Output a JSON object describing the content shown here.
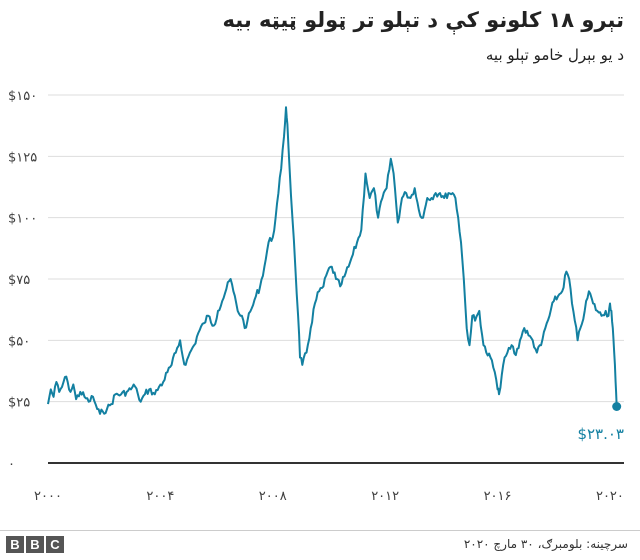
{
  "header": {
    "title": "تېرو ۱۸ کلونو کې د تېلو تر ټولو ټيټه بيه",
    "subtitle": "د يو بېرل خامو تېلو بيه"
  },
  "footer": {
    "logo_text": "BBC",
    "source": "سرچينه: بلومبرګ، ۳۰ مارچ ۲۰۲۰"
  },
  "chart_data": {
    "type": "line",
    "title": "تېرو ۱۸ کلونو کې د تېلو تر ټولو ټيټه بيه",
    "subtitle": "د يو بېرل خامو تېلو بيه",
    "xlabel": "",
    "ylabel": "",
    "xlim": [
      2000,
      2020.5
    ],
    "ylim": [
      0,
      150
    ],
    "grid": true,
    "line_color": "#1380A1",
    "x_ticks": [
      {
        "value": 2000,
        "label": "۲۰۰۰"
      },
      {
        "value": 2004,
        "label": "۲۰۰۴"
      },
      {
        "value": 2008,
        "label": "۲۰۰۸"
      },
      {
        "value": 2012,
        "label": "۲۰۱۲"
      },
      {
        "value": 2016,
        "label": "۲۰۱۶"
      },
      {
        "value": 2020,
        "label": "۲۰۲۰"
      }
    ],
    "y_ticks": [
      {
        "value": 0,
        "label": "۰"
      },
      {
        "value": 25,
        "label": "$۲۵"
      },
      {
        "value": 50,
        "label": "$۵۰"
      },
      {
        "value": 75,
        "label": "$۷۵"
      },
      {
        "value": 100,
        "label": "$۱۰۰"
      },
      {
        "value": 125,
        "label": "$۱۲۵"
      },
      {
        "value": 150,
        "label": "$۱۵۰"
      }
    ],
    "annotation": {
      "x": 2020.24,
      "y": 23.03,
      "label": "$۲۳.۰۳"
    },
    "series": [
      {
        "x": [
          2000.0,
          2000.1,
          2000.2,
          2000.3,
          2000.4,
          2000.5,
          2000.6,
          2000.7,
          2000.8,
          2000.9,
          2001.0,
          2001.15,
          2001.3,
          2001.45,
          2001.6,
          2001.75,
          2001.85,
          2001.95,
          2002.1,
          2002.25,
          2002.4,
          2002.6,
          2002.8,
          2002.95,
          2003.05,
          2003.2,
          2003.3,
          2003.45,
          2003.6,
          2003.8,
          2003.95,
          2004.1,
          2004.25,
          2004.4,
          2004.55,
          2004.7,
          2004.8,
          2004.9,
          2005.05,
          2005.2,
          2005.35,
          2005.55,
          2005.7,
          2005.9,
          2006.05,
          2006.2,
          2006.35,
          2006.5,
          2006.6,
          2006.75,
          2006.9,
          2007.0,
          2007.1,
          2007.25,
          2007.4,
          2007.55,
          2007.7,
          2007.85,
          2008.0,
          2008.1,
          2008.2,
          2008.3,
          2008.4,
          2008.47,
          2008.52,
          2008.6,
          2008.7,
          2008.8,
          2008.9,
          2008.97,
          2009.05,
          2009.2,
          2009.35,
          2009.5,
          2009.65,
          2009.8,
          2009.95,
          2010.1,
          2010.25,
          2010.4,
          2010.55,
          2010.7,
          2010.85,
          2011.0,
          2011.15,
          2011.3,
          2011.45,
          2011.6,
          2011.75,
          2011.9,
          2012.05,
          2012.2,
          2012.3,
          2012.45,
          2012.6,
          2012.75,
          2012.9,
          2013.05,
          2013.2,
          2013.35,
          2013.5,
          2013.65,
          2013.8,
          2013.95,
          2014.1,
          2014.25,
          2014.4,
          2014.5,
          2014.6,
          2014.7,
          2014.8,
          2014.9,
          2015.0,
          2015.1,
          2015.2,
          2015.35,
          2015.5,
          2015.6,
          2015.75,
          2015.9,
          2016.0,
          2016.05,
          2016.2,
          2016.35,
          2016.5,
          2016.65,
          2016.8,
          2016.95,
          2017.1,
          2017.25,
          2017.4,
          2017.55,
          2017.7,
          2017.85,
          2018.0,
          2018.15,
          2018.3,
          2018.45,
          2018.55,
          2018.65,
          2018.75,
          2018.85,
          2018.95,
          2019.1,
          2019.25,
          2019.4,
          2019.55,
          2019.7,
          2019.85,
          2019.95,
          2020.0,
          2020.05,
          2020.1,
          2020.15,
          2020.2,
          2020.24
        ],
        "values": [
          24,
          30,
          27,
          33,
          29,
          31,
          35,
          33,
          29,
          32,
          26,
          29,
          27,
          25,
          27,
          22,
          20,
          21,
          22,
          24,
          28,
          28,
          29,
          30,
          32,
          28,
          25,
          28,
          30,
          28,
          31,
          33,
          37,
          40,
          45,
          50,
          43,
          40,
          45,
          48,
          53,
          57,
          60,
          56,
          62,
          66,
          71,
          75,
          70,
          62,
          60,
          55,
          58,
          63,
          68,
          72,
          80,
          90,
          92,
          100,
          110,
          120,
          133,
          145,
          138,
          120,
          100,
          80,
          60,
          43,
          40,
          45,
          55,
          65,
          70,
          72,
          78,
          80,
          75,
          72,
          76,
          80,
          85,
          90,
          95,
          118,
          108,
          112,
          100,
          108,
          112,
          124,
          118,
          98,
          108,
          110,
          108,
          112,
          103,
          100,
          108,
          108,
          110,
          110,
          108,
          110,
          110,
          108,
          100,
          90,
          75,
          55,
          48,
          60,
          58,
          62,
          48,
          45,
          43,
          37,
          30,
          28,
          40,
          45,
          48,
          44,
          50,
          55,
          52,
          50,
          45,
          48,
          55,
          60,
          66,
          68,
          70,
          78,
          75,
          65,
          58,
          50,
          55,
          62,
          70,
          65,
          62,
          60,
          62,
          60,
          65,
          62,
          55,
          45,
          33,
          23.03
        ]
      }
    ]
  }
}
